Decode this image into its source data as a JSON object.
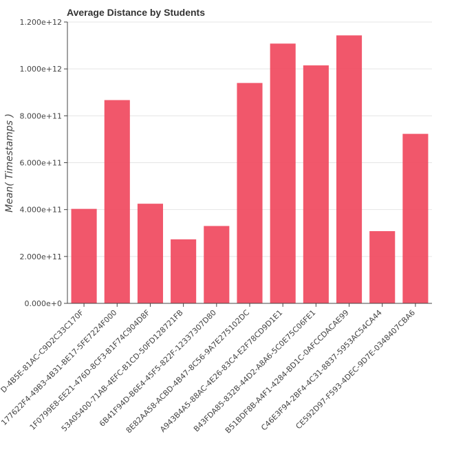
{
  "chart_data": {
    "type": "bar",
    "title": "Average Distance by Students",
    "xlabel": "",
    "ylabel": "Mean( Timestamps )",
    "ylim": [
      0,
      1200000000000.0
    ],
    "yticks": [
      0,
      200000000000.0,
      400000000000.0,
      600000000000.0,
      800000000000.0,
      1000000000000.0,
      1200000000000.0
    ],
    "ytick_labels": [
      "0.000e+0",
      "2.000e+11",
      "4.000e+11",
      "6.000e+11",
      "8.000e+11",
      "1.000e+12",
      "1.200e+12"
    ],
    "categories": [
      "D-4B5E-81AC-C9D2C33C170F",
      "177622F4-49B3-4B31-BE17-5FE7224F000",
      "1F0799E8-EE21-476D-8CF3-B1F74C904D8F",
      "53A05400-71AB-4EFC-B1CD-50FD128721FB",
      "6B41F94D-B6E4-45F5-822F-12337307D80",
      "8E82AA58-ACBD-4B47-8C56-9A7E275102DC",
      "A943B4A5-88AC-4E26-83C4-E2F78CD9D1E1",
      "B43FDA85-832B-44D2-A8A6-5C0E75C06FE1",
      "B51BDF8B-A4F1-4284-BD1C-0AFCCDACAE99",
      "C46E3F94-2BF4-4C31-8837-5953AC54CA44",
      "CE592D97-F593-4DEC-9D7E-0348407CBA6"
    ],
    "values": [
      403000000000.0,
      867000000000.0,
      425000000000.0,
      273000000000.0,
      330000000000.0,
      940000000000.0,
      1108000000000.0,
      1015000000000.0,
      1143000000000.0,
      308000000000.0,
      723000000000.0
    ],
    "grid": true,
    "color": "#f0495e"
  }
}
